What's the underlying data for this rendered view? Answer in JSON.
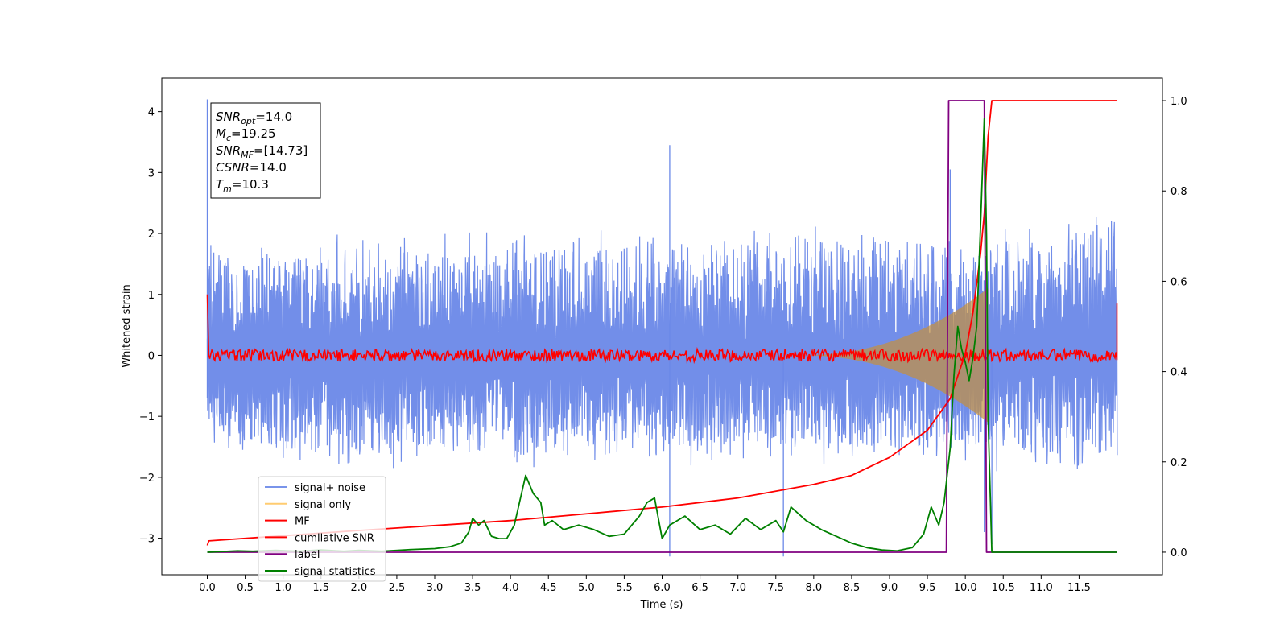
{
  "chart_data": {
    "type": "line",
    "xlabel": "Time (s)",
    "ylabel": "Whitened strain",
    "xlim": [
      -0.6,
      12.6
    ],
    "ylim": [
      -3.6,
      4.55
    ],
    "y2lim": [
      -0.05,
      1.05
    ],
    "x_ticks": [
      0.0,
      0.5,
      1.0,
      1.5,
      2.0,
      2.5,
      3.0,
      3.5,
      4.0,
      4.5,
      5.0,
      5.5,
      6.0,
      6.5,
      7.0,
      7.5,
      8.0,
      8.5,
      9.0,
      9.5,
      10.0,
      10.5,
      11.0,
      11.5
    ],
    "x_tick_labels": [
      "0.0",
      "0.5",
      "1.0",
      "1.5",
      "2.0",
      "2.5",
      "3.0",
      "3.5",
      "4.0",
      "4.5",
      "5.0",
      "5.5",
      "6.0",
      "6.5",
      "7.0",
      "7.5",
      "8.0",
      "8.5",
      "9.0",
      "9.5",
      "10.0",
      "10.5",
      "11.0",
      "11.5"
    ],
    "y_ticks": [
      -3,
      -2,
      -1,
      0,
      1,
      2,
      3,
      4
    ],
    "y_tick_labels": [
      "−3",
      "−2",
      "−1",
      "0",
      "1",
      "2",
      "3",
      "4"
    ],
    "y2_ticks": [
      0.0,
      0.2,
      0.4,
      0.6,
      0.8,
      1.0
    ],
    "y2_tick_labels": [
      "0.0",
      "0.2",
      "0.4",
      "0.6",
      "0.8",
      "1.0"
    ],
    "grid": false,
    "legend_position": "lower-left",
    "colors": {
      "signal_noise": "#6a88e8",
      "signal_only": "#ffb733",
      "mf": "#ff0000",
      "cumulative_snr": "#ff0000",
      "label": "#800080",
      "signal_statistics": "#008000"
    },
    "series": [
      {
        "name": "signal+ noise",
        "axis": "left",
        "style": "noise band",
        "t_start": 0.0,
        "t_end": 12.0,
        "envelope_upper": [
          2.0,
          1.9,
          2.1,
          2.0,
          2.2,
          2.1,
          2.0,
          2.2,
          2.1,
          2.0,
          2.2,
          2.6
        ],
        "envelope_lower": [
          -1.6,
          -1.8,
          -1.9,
          -1.8,
          -1.9,
          -1.8,
          -1.9,
          -1.8,
          -1.9,
          -1.8,
          -2.0,
          -1.9
        ],
        "spikes": [
          [
            0.0,
            4.2
          ],
          [
            0.0,
            -0.7
          ],
          [
            6.1,
            3.45
          ],
          [
            6.1,
            -3.3
          ],
          [
            7.6,
            -3.3
          ],
          [
            9.8,
            3.05
          ],
          [
            10.25,
            -2.9
          ],
          [
            10.35,
            -3.1
          ]
        ]
      },
      {
        "name": "signal only",
        "axis": "left",
        "style": "chirp",
        "t_merge": 10.3,
        "amplitude_peak": 1.1
      },
      {
        "name": "MF",
        "axis": "left",
        "x": [
          0.0,
          0.02,
          12.0,
          12.0
        ],
        "y": [
          1.0,
          0.0,
          0.0,
          0.85
        ],
        "noise_amplitude": 0.1
      },
      {
        "name": "cumilative SNR",
        "axis": "right",
        "x": [
          0.0,
          0.02,
          2.0,
          4.0,
          6.0,
          7.0,
          8.0,
          8.5,
          9.0,
          9.5,
          9.8,
          10.0,
          10.1,
          10.2,
          10.25,
          10.3,
          10.35,
          12.0
        ],
        "y": [
          0.015,
          0.025,
          0.048,
          0.07,
          0.1,
          0.12,
          0.15,
          0.17,
          0.21,
          0.27,
          0.34,
          0.44,
          0.53,
          0.66,
          0.75,
          0.92,
          1.0,
          1.0
        ]
      },
      {
        "name": "label",
        "axis": "right",
        "x": [
          0.0,
          9.75,
          9.78,
          10.25,
          10.28,
          12.0
        ],
        "y": [
          0.0,
          0.0,
          1.0,
          1.0,
          0.0,
          0.0
        ]
      },
      {
        "name": "signal statistics",
        "axis": "right",
        "x": [
          0.0,
          0.4,
          0.6,
          0.9,
          1.2,
          1.5,
          1.8,
          2.0,
          2.3,
          2.7,
          3.0,
          3.2,
          3.35,
          3.45,
          3.5,
          3.58,
          3.65,
          3.75,
          3.85,
          3.95,
          4.05,
          4.2,
          4.3,
          4.4,
          4.45,
          4.55,
          4.7,
          4.9,
          5.1,
          5.3,
          5.5,
          5.7,
          5.8,
          5.9,
          6.0,
          6.1,
          6.3,
          6.5,
          6.7,
          6.9,
          7.1,
          7.3,
          7.5,
          7.6,
          7.7,
          7.9,
          8.1,
          8.3,
          8.5,
          8.7,
          8.9,
          9.1,
          9.3,
          9.45,
          9.55,
          9.65,
          9.72,
          9.8,
          9.85,
          9.9,
          9.95,
          10.0,
          10.05,
          10.1,
          10.15,
          10.2,
          10.25,
          10.28,
          10.3,
          10.35,
          10.5,
          12.0
        ],
        "y": [
          0.0,
          0.003,
          0.002,
          0.004,
          0.002,
          0.005,
          0.002,
          0.004,
          0.002,
          0.006,
          0.008,
          0.012,
          0.02,
          0.045,
          0.075,
          0.06,
          0.07,
          0.035,
          0.03,
          0.03,
          0.06,
          0.17,
          0.13,
          0.11,
          0.06,
          0.07,
          0.05,
          0.06,
          0.05,
          0.035,
          0.04,
          0.08,
          0.11,
          0.12,
          0.03,
          0.06,
          0.08,
          0.05,
          0.06,
          0.04,
          0.075,
          0.05,
          0.07,
          0.045,
          0.1,
          0.07,
          0.05,
          0.035,
          0.02,
          0.01,
          0.005,
          0.003,
          0.01,
          0.04,
          0.1,
          0.06,
          0.11,
          0.23,
          0.39,
          0.5,
          0.45,
          0.42,
          0.38,
          0.43,
          0.5,
          0.72,
          0.96,
          0.7,
          0.3,
          0.0,
          0.0,
          0.0
        ]
      }
    ],
    "annotation_lines": [
      {
        "name": "SNR",
        "sub": "opt",
        "value": "=14.0"
      },
      {
        "name": "M",
        "sub": "c",
        "value": "=19.25"
      },
      {
        "name": "SNR",
        "sub": "MF",
        "value": "=[14.73]"
      },
      {
        "name": "CSNR",
        "sub": "",
        "value": "=14.0"
      },
      {
        "name": "T",
        "sub": "m",
        "value": "=10.3"
      }
    ]
  }
}
